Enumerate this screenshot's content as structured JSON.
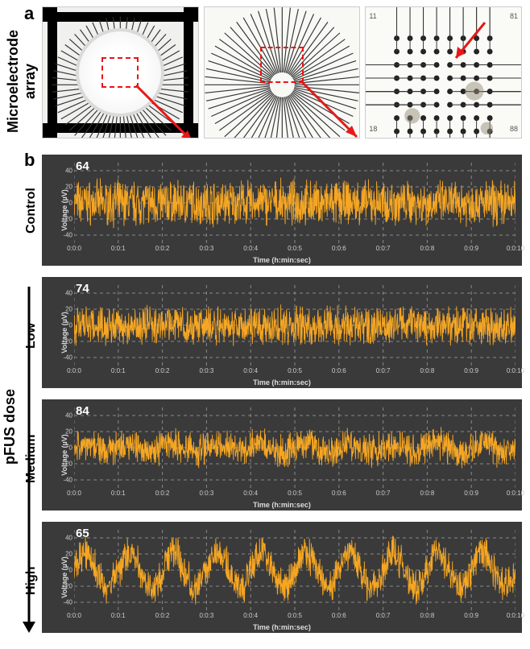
{
  "panels": {
    "a": "a",
    "b": "b"
  },
  "labels": {
    "mea": "Microelectrode array",
    "dose": "pFUS dose",
    "conditions": [
      "Control",
      "Low",
      "Medium",
      "High"
    ]
  },
  "waveforms": {
    "ylabel": "Voltage (µV)",
    "xlabel": "Time (h:min:sec)",
    "yticks": [
      -40,
      -20,
      0,
      20,
      40
    ],
    "ylim": [
      -50,
      50
    ],
    "xticks": [
      "0:0:0",
      "0:0:1",
      "0:0:2",
      "0:0:3",
      "0:0:4",
      "0:0:5",
      "0:0:6",
      "0:0:7",
      "0:0:8",
      "0:0:9",
      "0:0:10"
    ],
    "trace_color": "#f5a623",
    "bg_color": "#3a3a3a",
    "grid_color": "#888888",
    "panels": [
      {
        "channel": "64",
        "condition": "Control",
        "amplitude": 42,
        "oscillation": 0
      },
      {
        "channel": "74",
        "condition": "Low",
        "amplitude": 36,
        "oscillation": 0
      },
      {
        "channel": "84",
        "condition": "Medium",
        "amplitude": 32,
        "oscillation": 0.15
      },
      {
        "channel": "65",
        "condition": "High",
        "amplitude": 38,
        "oscillation": 0.55
      }
    ]
  },
  "panel_a": {
    "red_color": "#e61919",
    "images": 3
  }
}
